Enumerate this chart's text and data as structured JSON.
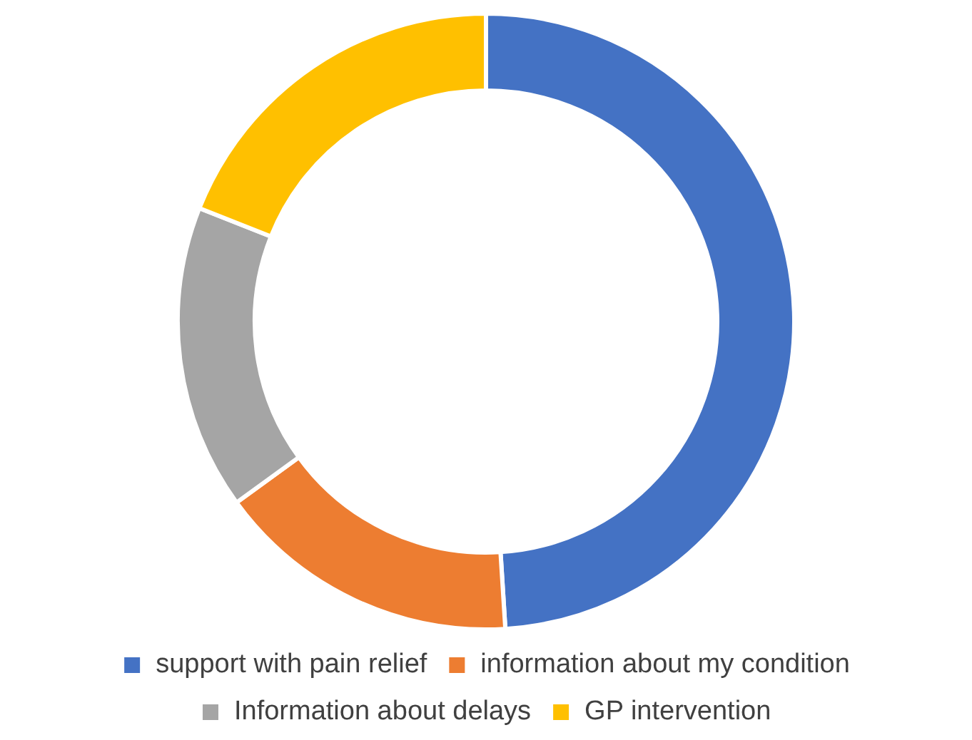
{
  "chart_data": {
    "type": "donut",
    "categories": [
      "support with pain relief",
      "information about my condition",
      "Information about delays",
      "GP intervention"
    ],
    "values": [
      49,
      16,
      16,
      19
    ],
    "colors": [
      "#4472c4",
      "#ed7d31",
      "#a5a5a5",
      "#ffc000"
    ],
    "legend": "bottom"
  }
}
